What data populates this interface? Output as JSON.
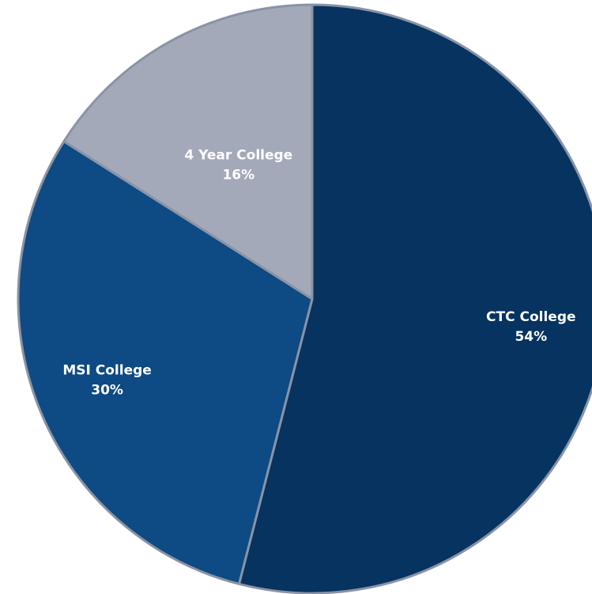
{
  "chart_data": {
    "type": "pie",
    "categories": [
      "CTC College",
      "MSI College",
      "4 Year College"
    ],
    "values": [
      54,
      30,
      16
    ],
    "value_labels": [
      "54%",
      "30%",
      "16%"
    ],
    "colors": [
      "#06335f",
      "#0e4a84",
      "#a4a9b9"
    ]
  }
}
